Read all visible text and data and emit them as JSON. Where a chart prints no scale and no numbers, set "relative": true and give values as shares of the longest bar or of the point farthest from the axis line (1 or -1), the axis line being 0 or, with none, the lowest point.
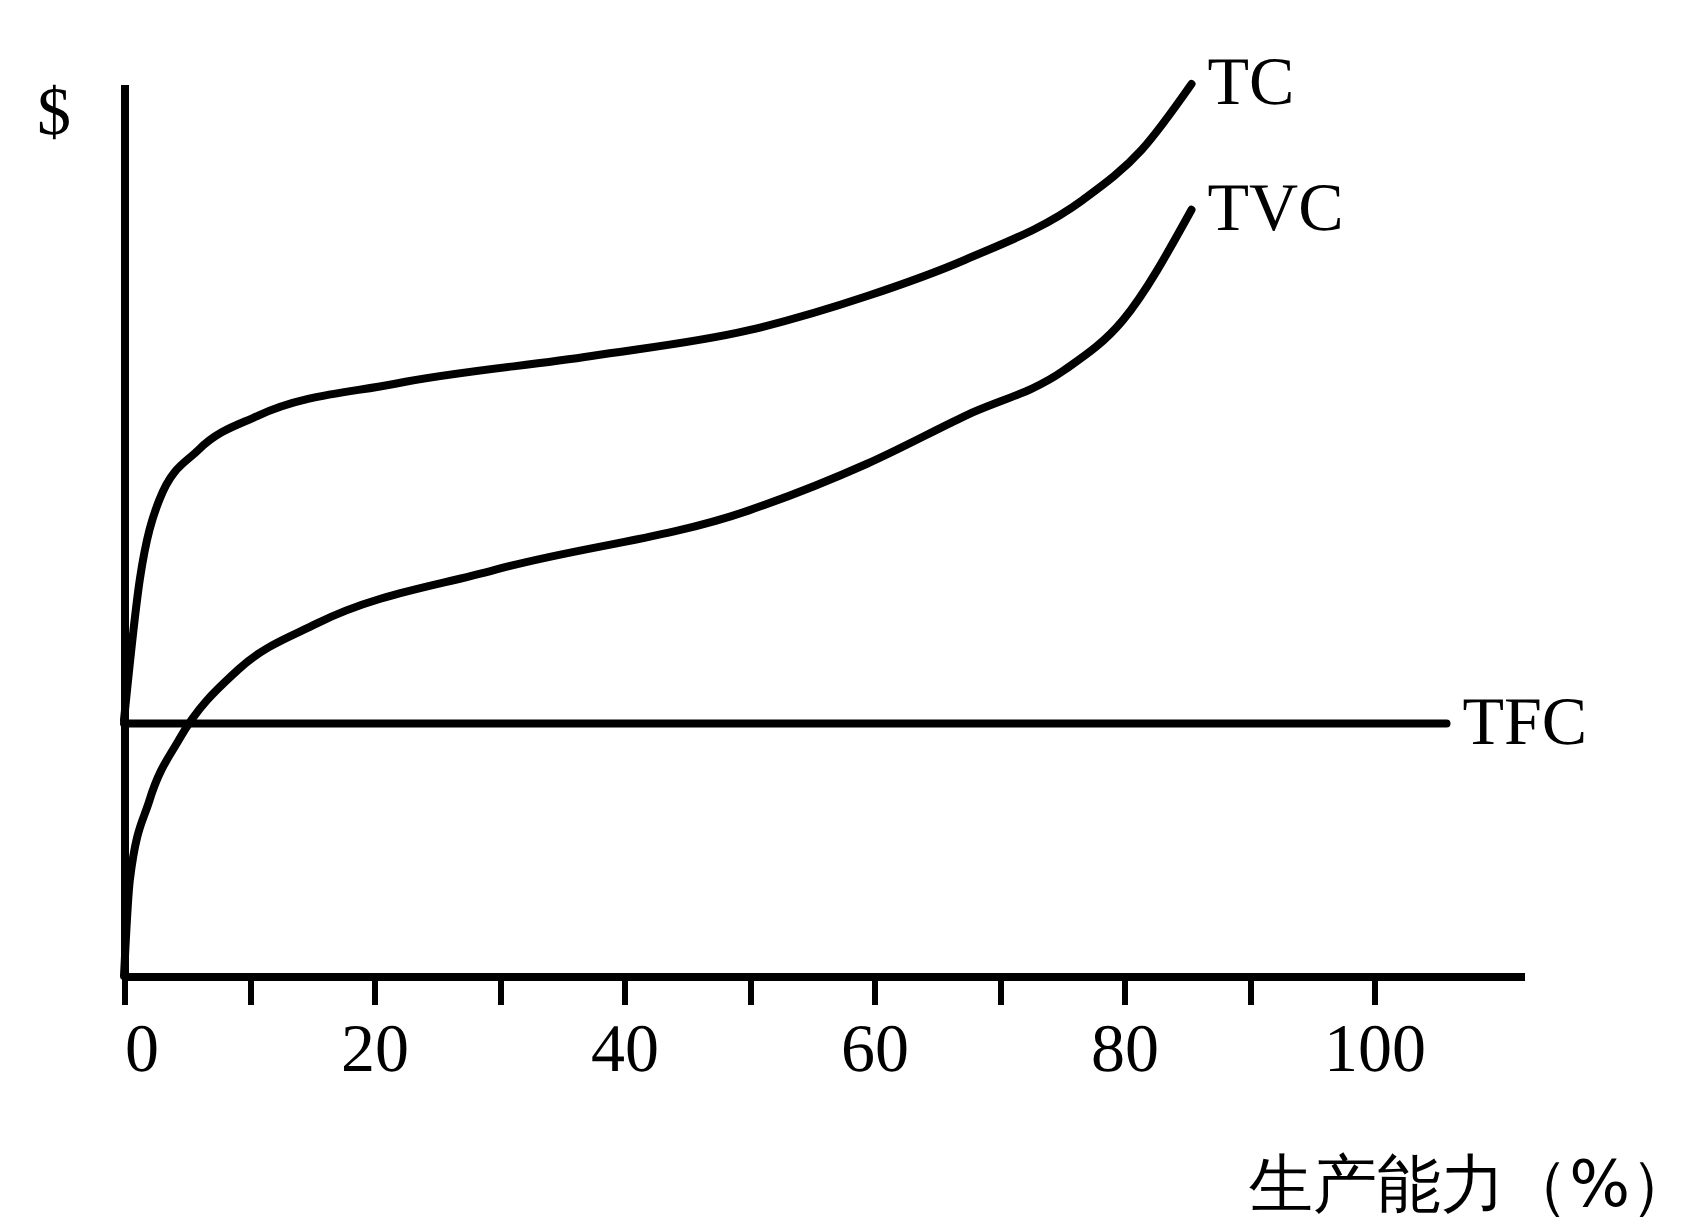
{
  "chart_data": {
    "type": "line",
    "relative": true,
    "ylabel": "$",
    "xlabel": "生产能力（%）",
    "xlim": [
      0,
      112
    ],
    "xticks": [
      0,
      {
        "value": 10,
        "label": null
      },
      20,
      {
        "value": 30,
        "label": null
      },
      40,
      {
        "value": 50,
        "label": null
      },
      60,
      {
        "value": 70,
        "label": null
      },
      80,
      {
        "value": 90,
        "label": null
      },
      100
    ],
    "grid": false,
    "legend": false,
    "marker": "none",
    "line_style": "solid",
    "series": [
      {
        "name": "TC",
        "color": "#000000",
        "x": [
          0,
          1.26,
          2.83,
          5.97,
          10.7,
          21.7,
          37.4,
          50,
          59.4,
          67.3,
          76.7,
          81.4,
          85.4
        ],
        "values": [
          0.287,
          0.444,
          0.534,
          0.59,
          0.628,
          0.664,
          0.695,
          0.724,
          0.762,
          0.803,
          0.87,
          0.926,
          1
        ]
      },
      {
        "name": "TVC",
        "color": "#000000",
        "x": [
          0,
          0.47,
          2.04,
          4.4,
          9.1,
          15.4,
          29.6,
          50,
          59.4,
          67.3,
          75.2,
          79.9,
          85.4
        ],
        "values": [
          0,
          0.108,
          0.197,
          0.265,
          0.343,
          0.395,
          0.455,
          0.522,
          0.574,
          0.628,
          0.679,
          0.735,
          0.859
        ]
      },
      {
        "name": "TFC",
        "color": "#000000",
        "x": [
          0,
          105.8
        ],
        "values": [
          0.283,
          0.283
        ]
      }
    ]
  }
}
